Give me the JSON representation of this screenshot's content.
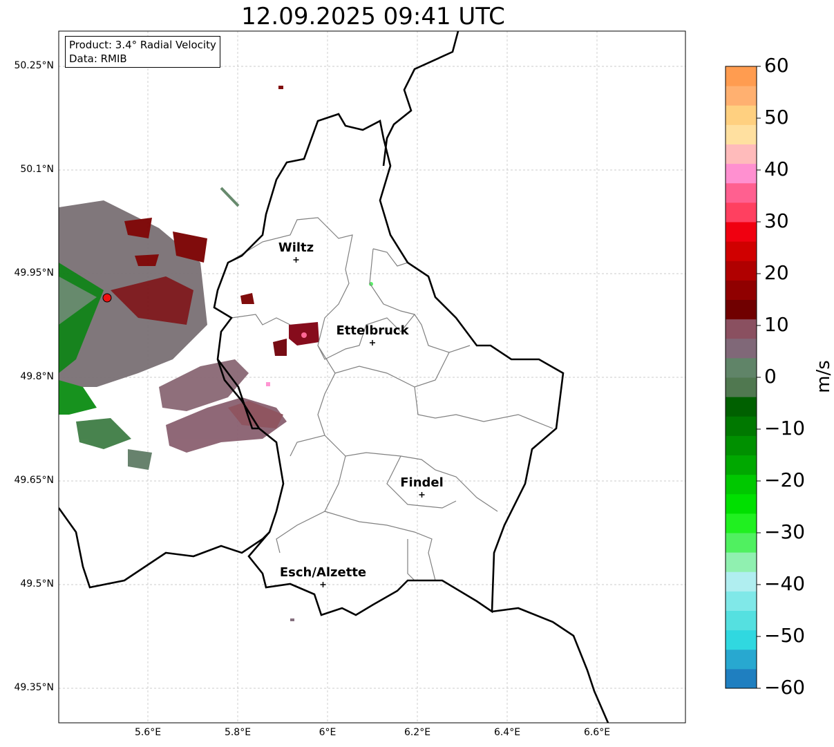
{
  "title": "12.09.2025 09:41 UTC",
  "info": {
    "product": "Product: 3.4° Radial Velocity",
    "data": "Data: RMIB"
  },
  "lat_ticks": [
    "50.25°N",
    "50.1°N",
    "49.95°N",
    "49.8°N",
    "49.65°N",
    "49.5°N",
    "49.35°N"
  ],
  "lon_ticks": [
    "5.6°E",
    "5.8°E",
    "6°E",
    "6.2°E",
    "6.4°E",
    "6.6°E"
  ],
  "cities": [
    {
      "name": "Wiltz",
      "lon": 5.93,
      "lat": 49.97
    },
    {
      "name": "Ettelbruck",
      "lon": 6.1,
      "lat": 49.85
    },
    {
      "name": "Findel",
      "lon": 6.21,
      "lat": 49.63
    },
    {
      "name": "Esch/Alzette",
      "lon": 5.99,
      "lat": 49.5
    }
  ],
  "radar_site": {
    "lon": 5.505,
    "lat": 49.915
  },
  "colorbar": {
    "unit": "m/s",
    "min": -60,
    "max": 60,
    "ticks": [
      "60",
      "50",
      "40",
      "30",
      "20",
      "10",
      "0",
      "−10",
      "−20",
      "−30",
      "−40",
      "−50",
      "−60"
    ],
    "colors": [
      "#1f7fc0",
      "#28a8d0",
      "#30d8e0",
      "#55e0e0",
      "#80e8e8",
      "#b0eef0",
      "#90f0b0",
      "#50f060",
      "#20f020",
      "#00e000",
      "#00c800",
      "#00a800",
      "#009000",
      "#007800",
      "#006000",
      "#507850",
      "#608468",
      "#806878",
      "#8a5060",
      "#700000",
      "#900000",
      "#b00000",
      "#d00000",
      "#f00010",
      "#ff4060",
      "#ff6090",
      "#ff90d0",
      "#ffbbbb",
      "#ffe0a0",
      "#ffd080",
      "#ffb070",
      "#ff9c50"
    ]
  }
}
